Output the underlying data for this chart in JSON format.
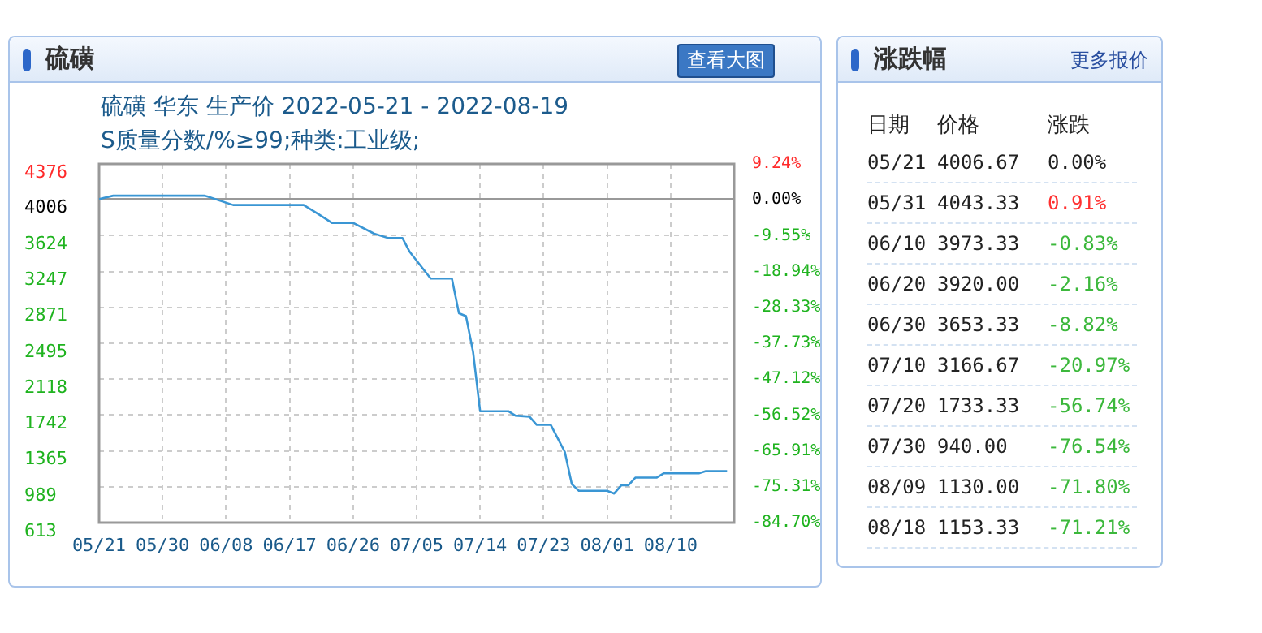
{
  "chart_data": [
    {
      "type": "line",
      "title": "硫磺 华东 生产价 2022-05-21 - 2022-08-19",
      "subtitle": "S质量分数/%≥99;种类:工业级;",
      "annotations": [
        "硫磺",
        "查看大图"
      ],
      "x": [
        "--05-21",
        "--05-23",
        "--06-05",
        "--06-09",
        "--06-19",
        "--06-21",
        "--06-23",
        "--06-26",
        "--06-29",
        "--07-01",
        "--07-03",
        "--07-04",
        "--07-07",
        "--07-10",
        "--07-11",
        "--07-12",
        "--07-13",
        "--07-14",
        "--07-18",
        "--07-19",
        "--07-21",
        "--07-22",
        "--07-24",
        "--07-26",
        "--07-27",
        "--07-28",
        "--08-01",
        "--08-02",
        "--08-03",
        "--08-04",
        "--08-05",
        "--08-08",
        "--08-09",
        "--08-14",
        "--08-15",
        "--08-18"
      ],
      "series": [
        {
          "color": "#3a96d4",
          "values": [
            4007,
            4043,
            4043,
            3945,
            3945,
            3853,
            3758,
            3758,
            3644,
            3598,
            3598,
            3456,
            3173,
            3173,
            2810,
            2780,
            2406,
            1782,
            1782,
            1736,
            1725,
            1640,
            1640,
            1356,
            1016,
            947,
            947,
            918,
            1004,
            1004,
            1085,
            1085,
            1130,
            1130,
            1153,
            1153
          ]
        }
      ],
      "xlim": [
        "--05-21",
        "--08-19"
      ],
      "xticks": [
        {
          "value": "--05-21",
          "label": "05/21"
        },
        {
          "value": "--05-30",
          "label": "05/30"
        },
        {
          "value": "--06-08",
          "label": "06/08"
        },
        {
          "value": "--06-17",
          "label": "06/17"
        },
        {
          "value": "--06-26",
          "label": "06/26"
        },
        {
          "value": "--07-05",
          "label": "07/05"
        },
        {
          "value": "--07-14",
          "label": "07/14"
        },
        {
          "value": "--07-23",
          "label": "07/23"
        },
        {
          "value": "--08-01",
          "label": "08/01"
        },
        {
          "value": "--08-10",
          "label": "08/10"
        }
      ],
      "ylim": [
        613,
        4376
      ],
      "yticks": [
        4376,
        4006,
        3624,
        3247,
        2871,
        2495,
        2118,
        1742,
        1365,
        989,
        613
      ],
      "y2lim": [
        -84.7,
        9.24
      ],
      "y2ticks": [
        {
          "value": 9.24,
          "label": "9.24%"
        },
        {
          "value": 0,
          "label": "0.00%"
        },
        {
          "value": -9.55,
          "label": "-9.55%"
        },
        {
          "value": -18.94,
          "label": "-18.94%"
        },
        {
          "value": -28.33,
          "label": "-28.33%"
        },
        {
          "value": -37.73,
          "label": "-37.73%"
        },
        {
          "value": -47.12,
          "label": "-47.12%"
        },
        {
          "value": -56.52,
          "label": "-56.52%"
        },
        {
          "value": -65.91,
          "label": "-65.91%"
        },
        {
          "value": -75.31,
          "label": "-75.31%"
        },
        {
          "value": -84.7,
          "label": "-84.70%"
        }
      ],
      "ref_lines": [
        {
          "axis": "y",
          "value": 4006,
          "color": "#999999"
        }
      ],
      "grid": true,
      "legend": false,
      "marker": "none",
      "line_style": "solid"
    },
    {
      "type": "other",
      "title": "涨跌幅",
      "annotations": [
        "更多报价",
        "日期",
        "价格",
        "涨跌",
        "05/21",
        "4006.67",
        "0.00%",
        "05/31",
        "4043.33",
        "0.91%",
        "06/10",
        "3973.33",
        "-0.83%",
        "06/20",
        "3920.00",
        "-2.16%",
        "06/30",
        "3653.33",
        "-8.82%",
        "07/10",
        "3166.67",
        "-20.97%",
        "07/20",
        "1733.33",
        "-56.74%",
        "07/30",
        "940.00",
        "-76.54%",
        "08/09",
        "1130.00",
        "-71.80%",
        "08/18",
        "1153.33",
        "-71.21%"
      ]
    }
  ]
}
